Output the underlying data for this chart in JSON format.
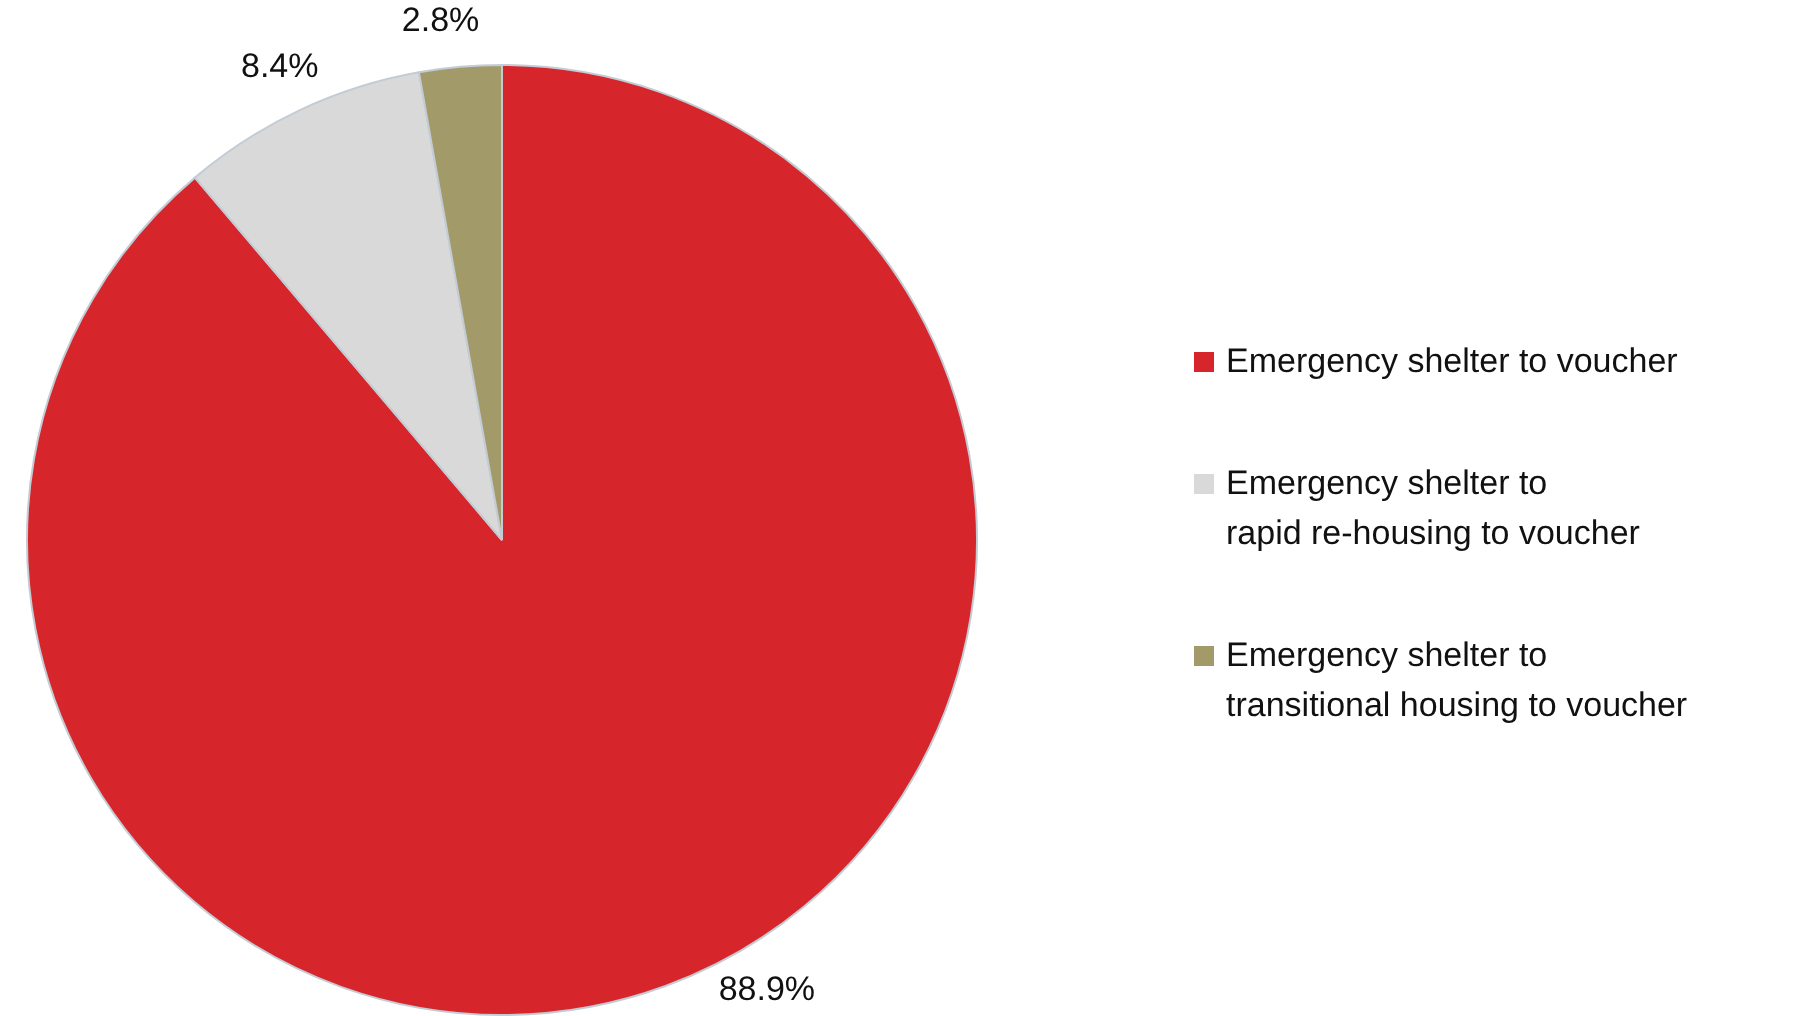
{
  "chart_data": {
    "type": "pie",
    "categories": [
      "Emergency shelter to voucher",
      "Emergency shelter to\nrapid re-housing to voucher",
      "Emergency shelter to\ntransitional housing to voucher"
    ],
    "values": [
      88.9,
      8.4,
      2.8
    ],
    "colors": [
      "#d7262b",
      "#d9d9d9",
      "#a39a6a"
    ],
    "value_labels": [
      "88.9%",
      "8.4%",
      "2.8%"
    ],
    "legend": "right"
  }
}
